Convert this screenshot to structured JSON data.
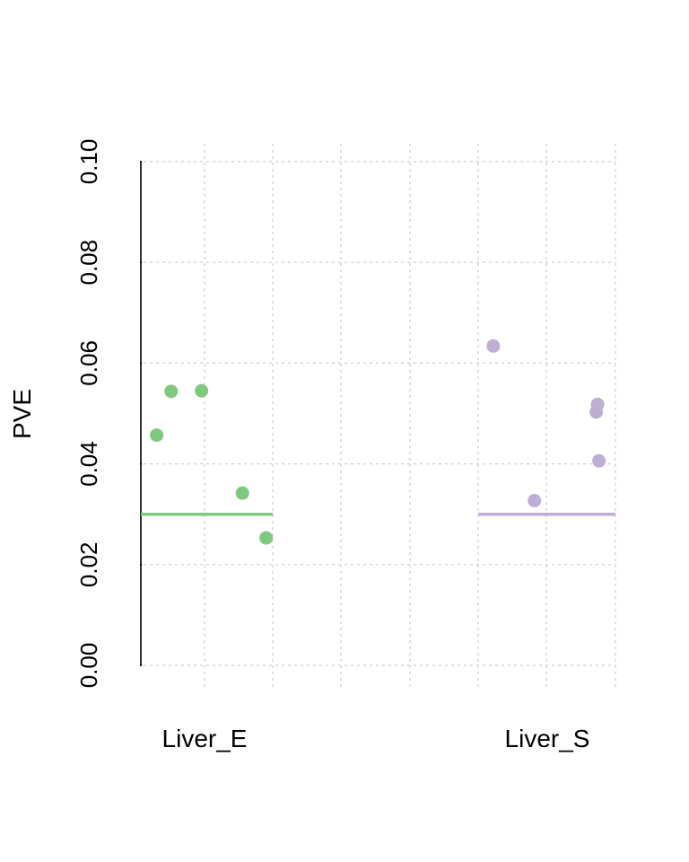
{
  "chart_data": {
    "type": "scatter",
    "title": "",
    "xlabel": "",
    "ylabel": "PVE",
    "ylim": [
      0,
      0.1
    ],
    "yticks": [
      "0.00",
      "0.02",
      "0.04",
      "0.06",
      "0.08",
      "0.10"
    ],
    "ytick_values": [
      0,
      0.02,
      0.04,
      0.06,
      0.08,
      0.1
    ],
    "grid": true,
    "categories": [
      "Liver_E",
      "Liver_S"
    ],
    "series": [
      {
        "category": "Liver_E",
        "color": "#7fc97f",
        "points": [
          {
            "x": 0.12,
            "y": 0.0457
          },
          {
            "x": 0.23,
            "y": 0.0544
          },
          {
            "x": 0.46,
            "y": 0.0545
          },
          {
            "x": 0.77,
            "y": 0.0342
          },
          {
            "x": 0.95,
            "y": 0.0253
          }
        ],
        "reference_line": 0.03
      },
      {
        "category": "Liver_S",
        "color": "#beaed4",
        "points": [
          {
            "x": 0.11,
            "y": 0.0634
          },
          {
            "x": 0.41,
            "y": 0.0327
          },
          {
            "x": 0.86,
            "y": 0.0503
          },
          {
            "x": 0.87,
            "y": 0.0518
          },
          {
            "x": 0.88,
            "y": 0.0406
          }
        ],
        "reference_line": 0.03
      }
    ]
  }
}
